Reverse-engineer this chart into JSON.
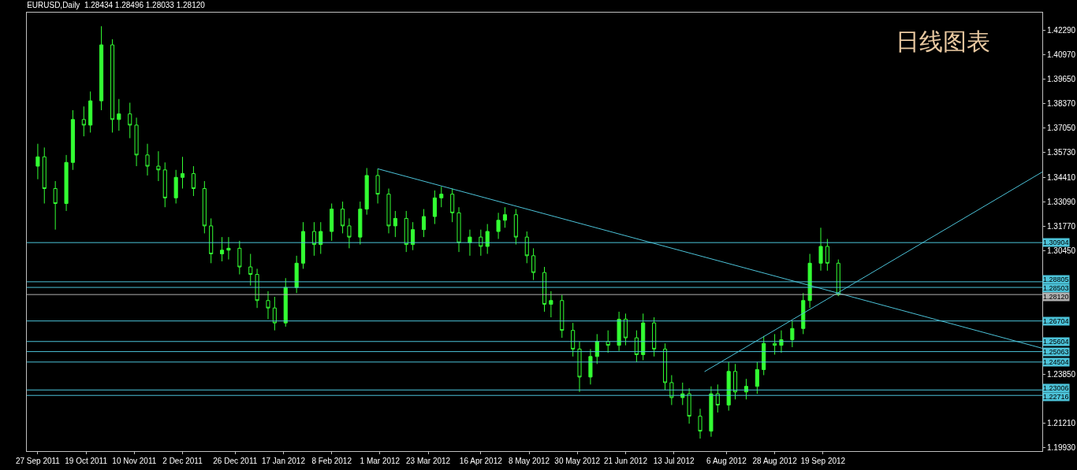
{
  "chart_data": {
    "type": "candlestick",
    "title": "EURUSD,Daily  1.28434 1.28496 1.28033 1.28120",
    "subtitle": "日线图表",
    "color": "#33ff33",
    "x": [
      "2011-09-27",
      "2011-09-30",
      "2011-10-05",
      "2011-10-10",
      "2011-10-13",
      "2011-10-18",
      "2011-10-21",
      "2011-10-26",
      "2011-10-31",
      "2011-11-03",
      "2011-11-08",
      "2011-11-11",
      "2011-11-16",
      "2011-11-21",
      "2011-11-24",
      "2011-11-29",
      "2011-12-02",
      "2011-12-07",
      "2011-12-12",
      "2011-12-15",
      "2011-12-20",
      "2011-12-23",
      "2011-12-28",
      "2012-01-02",
      "2012-01-05",
      "2012-01-10",
      "2012-01-13",
      "2012-01-18",
      "2012-01-23",
      "2012-01-26",
      "2012-01-31",
      "2012-02-03",
      "2012-02-08",
      "2012-02-13",
      "2012-02-16",
      "2012-02-21",
      "2012-02-24",
      "2012-02-29",
      "2012-03-05",
      "2012-03-08",
      "2012-03-13",
      "2012-03-16",
      "2012-03-21",
      "2012-03-26",
      "2012-03-29",
      "2012-04-03",
      "2012-04-06",
      "2012-04-11",
      "2012-04-16",
      "2012-04-19",
      "2012-04-24",
      "2012-04-27",
      "2012-05-02",
      "2012-05-07",
      "2012-05-10",
      "2012-05-15",
      "2012-05-18",
      "2012-05-23",
      "2012-05-28",
      "2012-05-31",
      "2012-06-05",
      "2012-06-08",
      "2012-06-13",
      "2012-06-18",
      "2012-06-21",
      "2012-06-26",
      "2012-06-29",
      "2012-07-04",
      "2012-07-09",
      "2012-07-12",
      "2012-07-17",
      "2012-07-20",
      "2012-07-25",
      "2012-07-30",
      "2012-08-02",
      "2012-08-07",
      "2012-08-10",
      "2012-08-15",
      "2012-08-20",
      "2012-08-23",
      "2012-08-28",
      "2012-08-31",
      "2012-09-05",
      "2012-09-10",
      "2012-09-13",
      "2012-09-18",
      "2012-09-21",
      "2012-09-26"
    ],
    "ohlc": [
      [
        1.35,
        1.362,
        1.343,
        1.355
      ],
      [
        1.355,
        1.36,
        1.33,
        1.338
      ],
      [
        1.338,
        1.342,
        1.316,
        1.33
      ],
      [
        1.33,
        1.356,
        1.326,
        1.352
      ],
      [
        1.352,
        1.38,
        1.348,
        1.375
      ],
      [
        1.375,
        1.382,
        1.366,
        1.372
      ],
      [
        1.372,
        1.39,
        1.368,
        1.385
      ],
      [
        1.385,
        1.425,
        1.38,
        1.415
      ],
      [
        1.415,
        1.418,
        1.368,
        1.375
      ],
      [
        1.375,
        1.386,
        1.369,
        1.378
      ],
      [
        1.378,
        1.384,
        1.365,
        1.372
      ],
      [
        1.372,
        1.376,
        1.35,
        1.356
      ],
      [
        1.356,
        1.362,
        1.345,
        1.35
      ],
      [
        1.35,
        1.358,
        1.342,
        1.348
      ],
      [
        1.348,
        1.352,
        1.328,
        1.333
      ],
      [
        1.333,
        1.348,
        1.33,
        1.344
      ],
      [
        1.344,
        1.355,
        1.338,
        1.346
      ],
      [
        1.346,
        1.35,
        1.334,
        1.338
      ],
      [
        1.338,
        1.342,
        1.314,
        1.318
      ],
      [
        1.318,
        1.322,
        1.298,
        1.303
      ],
      [
        1.303,
        1.312,
        1.299,
        1.305
      ],
      [
        1.305,
        1.312,
        1.3,
        1.306
      ],
      [
        1.306,
        1.31,
        1.292,
        1.296
      ],
      [
        1.296,
        1.303,
        1.286,
        1.292
      ],
      [
        1.292,
        1.295,
        1.274,
        1.278
      ],
      [
        1.278,
        1.283,
        1.268,
        1.274
      ],
      [
        1.274,
        1.28,
        1.262,
        1.266
      ],
      [
        1.266,
        1.29,
        1.264,
        1.285
      ],
      [
        1.285,
        1.302,
        1.282,
        1.298
      ],
      [
        1.298,
        1.32,
        1.295,
        1.315
      ],
      [
        1.315,
        1.32,
        1.302,
        1.308
      ],
      [
        1.308,
        1.32,
        1.303,
        1.315
      ],
      [
        1.315,
        1.33,
        1.31,
        1.327
      ],
      [
        1.327,
        1.331,
        1.314,
        1.318
      ],
      [
        1.318,
        1.322,
        1.306,
        1.312
      ],
      [
        1.312,
        1.331,
        1.308,
        1.327
      ],
      [
        1.327,
        1.349,
        1.324,
        1.345
      ],
      [
        1.345,
        1.3486,
        1.33,
        1.335
      ],
      [
        1.335,
        1.338,
        1.314,
        1.318
      ],
      [
        1.318,
        1.326,
        1.312,
        1.322
      ],
      [
        1.322,
        1.326,
        1.304,
        1.308
      ],
      [
        1.308,
        1.32,
        1.305,
        1.316
      ],
      [
        1.316,
        1.327,
        1.312,
        1.323
      ],
      [
        1.323,
        1.337,
        1.319,
        1.333
      ],
      [
        1.333,
        1.339,
        1.328,
        1.335
      ],
      [
        1.335,
        1.338,
        1.32,
        1.325
      ],
      [
        1.325,
        1.328,
        1.304,
        1.309
      ],
      [
        1.309,
        1.316,
        1.302,
        1.312
      ],
      [
        1.312,
        1.316,
        1.302,
        1.307
      ],
      [
        1.307,
        1.319,
        1.303,
        1.315
      ],
      [
        1.315,
        1.325,
        1.311,
        1.321
      ],
      [
        1.321,
        1.328,
        1.317,
        1.324
      ],
      [
        1.324,
        1.327,
        1.308,
        1.312
      ],
      [
        1.312,
        1.315,
        1.298,
        1.302
      ],
      [
        1.302,
        1.306,
        1.289,
        1.293
      ],
      [
        1.293,
        1.296,
        1.272,
        1.276
      ],
      [
        1.276,
        1.283,
        1.269,
        1.278
      ],
      [
        1.278,
        1.281,
        1.258,
        1.262
      ],
      [
        1.262,
        1.266,
        1.248,
        1.252
      ],
      [
        1.252,
        1.256,
        1.229,
        1.237
      ],
      [
        1.237,
        1.252,
        1.233,
        1.248
      ],
      [
        1.248,
        1.26,
        1.244,
        1.256
      ],
      [
        1.256,
        1.262,
        1.25,
        1.254
      ],
      [
        1.254,
        1.272,
        1.251,
        1.268
      ],
      [
        1.268,
        1.271,
        1.254,
        1.258
      ],
      [
        1.258,
        1.262,
        1.245,
        1.249
      ],
      [
        1.249,
        1.271,
        1.246,
        1.266
      ],
      [
        1.266,
        1.269,
        1.248,
        1.252
      ],
      [
        1.252,
        1.255,
        1.23,
        1.234
      ],
      [
        1.234,
        1.238,
        1.222,
        1.226
      ],
      [
        1.226,
        1.234,
        1.222,
        1.228
      ],
      [
        1.228,
        1.231,
        1.212,
        1.216
      ],
      [
        1.216,
        1.22,
        1.204,
        1.208
      ],
      [
        1.208,
        1.232,
        1.205,
        1.228
      ],
      [
        1.228,
        1.233,
        1.218,
        1.222
      ],
      [
        1.222,
        1.245,
        1.219,
        1.24
      ],
      [
        1.24,
        1.244,
        1.225,
        1.229
      ],
      [
        1.229,
        1.236,
        1.225,
        1.232
      ],
      [
        1.232,
        1.245,
        1.228,
        1.241
      ],
      [
        1.241,
        1.259,
        1.238,
        1.255
      ],
      [
        1.255,
        1.26,
        1.249,
        1.254
      ],
      [
        1.254,
        1.262,
        1.25,
        1.257
      ],
      [
        1.257,
        1.267,
        1.253,
        1.263
      ],
      [
        1.263,
        1.282,
        1.26,
        1.278
      ],
      [
        1.278,
        1.303,
        1.274,
        1.298
      ],
      [
        1.298,
        1.317,
        1.294,
        1.307
      ],
      [
        1.307,
        1.311,
        1.294,
        1.298
      ],
      [
        1.298,
        1.3,
        1.28033,
        1.2812
      ]
    ],
    "series": [
      {
        "type": "line",
        "color": "#4cc3d9",
        "x": [
          "2012-02-29",
          "2012-12-28"
        ],
        "values": [
          1.3486,
          1.2524
        ]
      },
      {
        "type": "line",
        "color": "#4cc3d9",
        "x": [
          "2012-07-27",
          "2012-12-28"
        ],
        "values": [
          1.2399,
          1.3469
        ]
      }
    ],
    "xlim": [
      "2011-09-22",
      "2012-12-28"
    ],
    "xticks": [
      {
        "value": "2011-09-27",
        "label": "27 Sep 2011"
      },
      {
        "value": "2011-10-19",
        "label": "19 Oct 2011"
      },
      {
        "value": "2011-11-10",
        "label": "10 Nov 2011"
      },
      {
        "value": "2011-12-02",
        "label": "2 Dec 2011"
      },
      {
        "value": "2011-12-26",
        "label": "26 Dec 2011"
      },
      {
        "value": "2012-01-17",
        "label": "17 Jan 2012"
      },
      {
        "value": "2012-02-08",
        "label": "8 Feb 2012"
      },
      {
        "value": "2012-03-01",
        "label": "1 Mar 2012"
      },
      {
        "value": "2012-03-23",
        "label": "23 Mar 2012"
      },
      {
        "value": "2012-04-16",
        "label": "16 Apr 2012"
      },
      {
        "value": "2012-05-08",
        "label": "8 May 2012"
      },
      {
        "value": "2012-05-30",
        "label": "30 May 2012"
      },
      {
        "value": "2012-06-21",
        "label": "21 Jun 2012"
      },
      {
        "value": "2012-07-13",
        "label": "13 Jul 2012"
      },
      {
        "value": "2012-08-06",
        "label": "6 Aug 2012"
      },
      {
        "value": "2012-08-28",
        "label": "28 Aug 2012"
      },
      {
        "value": "2012-09-19",
        "label": "19 Sep 2012"
      }
    ],
    "ylim": [
      1.1973,
      1.4323
    ],
    "yticks": [
      {
        "value": 1.4229,
        "label": "1.42290"
      },
      {
        "value": 1.4097,
        "label": "1.40970"
      },
      {
        "value": 1.3965,
        "label": "1.39650"
      },
      {
        "value": 1.3837,
        "label": "1.38370"
      },
      {
        "value": 1.3705,
        "label": "1.37050"
      },
      {
        "value": 1.3573,
        "label": "1.35730"
      },
      {
        "value": 1.3441,
        "label": "1.34410"
      },
      {
        "value": 1.3309,
        "label": "1.33090"
      },
      {
        "value": 1.3177,
        "label": "1.31770"
      },
      {
        "value": 1.3045,
        "label": "1.30450"
      },
      {
        "value": 1.2385,
        "label": "1.23850"
      },
      {
        "value": 1.2121,
        "label": "1.21210"
      },
      {
        "value": 1.1993,
        "label": "1.19930"
      }
    ],
    "ref_lines": [
      {
        "axis": "y",
        "value": 1.30904,
        "label": "1.30904",
        "color": "#4cc3d9"
      },
      {
        "axis": "y",
        "value": 1.28805,
        "label": "1.28805",
        "color": "#4cc3d9"
      },
      {
        "axis": "y",
        "value": 1.28503,
        "label": "1.28503",
        "color": "#4cc3d9"
      },
      {
        "axis": "y",
        "value": 1.2812,
        "label": "1.28120",
        "color": "#b0b0b0"
      },
      {
        "axis": "y",
        "value": 1.26704,
        "label": "1.26704",
        "color": "#4cc3d9"
      },
      {
        "axis": "y",
        "value": 1.25604,
        "label": "1.25604",
        "color": "#4cc3d9"
      },
      {
        "axis": "y",
        "value": 1.25063,
        "label": "1.25063",
        "color": "#4cc3d9"
      },
      {
        "axis": "y",
        "value": 1.24504,
        "label": "1.24504",
        "color": "#4cc3d9"
      },
      {
        "axis": "y",
        "value": 1.23006,
        "label": "1.23006",
        "color": "#4cc3d9"
      },
      {
        "axis": "y",
        "value": 1.22716,
        "label": "1.22716",
        "color": "#4cc3d9"
      }
    ]
  }
}
